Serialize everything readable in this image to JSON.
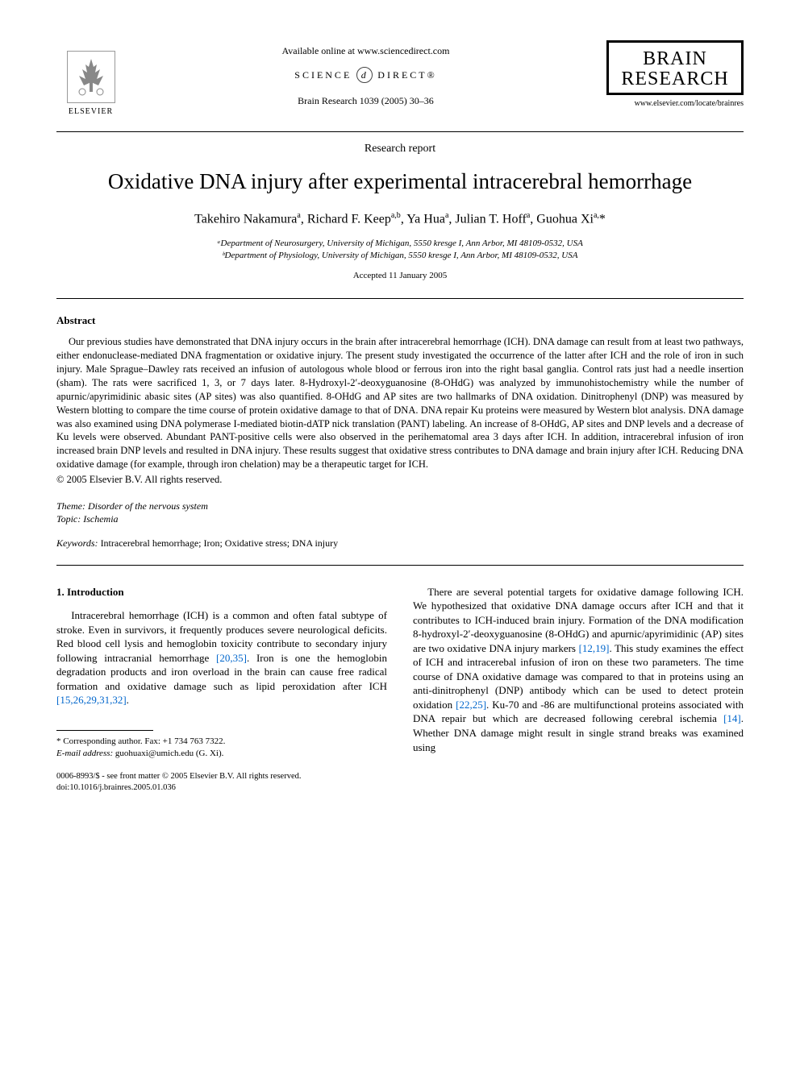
{
  "header": {
    "publisher_name": "ELSEVIER",
    "available_text": "Available online at www.sciencedirect.com",
    "science_direct_left": "SCIENCE",
    "science_direct_right": "DIRECT®",
    "journal_reference": "Brain Research 1039 (2005) 30–36",
    "journal_brand_line1": "BRAIN",
    "journal_brand_line2": "RESEARCH",
    "journal_url": "www.elsevier.com/locate/brainres"
  },
  "article": {
    "type": "Research report",
    "title": "Oxidative DNA injury after experimental intracerebral hemorrhage",
    "authors_html": "Takehiro Nakamura<sup>a</sup>, Richard F. Keep<sup>a,b</sup>, Ya Hua<sup>a</sup>, Julian T. Hoff<sup>a</sup>, Guohua Xi<sup>a,</sup>*",
    "affiliations": [
      "ᵃDepartment of Neurosurgery, University of Michigan, 5550 kresge I, Ann Arbor, MI 48109-0532, USA",
      "ᵇDepartment of Physiology, University of Michigan, 5550 kresge I, Ann Arbor, MI 48109-0532, USA"
    ],
    "accepted": "Accepted 11 January 2005"
  },
  "abstract": {
    "heading": "Abstract",
    "body": "Our previous studies have demonstrated that DNA injury occurs in the brain after intracerebral hemorrhage (ICH). DNA damage can result from at least two pathways, either endonuclease-mediated DNA fragmentation or oxidative injury. The present study investigated the occurrence of the latter after ICH and the role of iron in such injury. Male Sprague–Dawley rats received an infusion of autologous whole blood or ferrous iron into the right basal ganglia. Control rats just had a needle insertion (sham). The rats were sacrificed 1, 3, or 7 days later. 8-Hydroxyl-2′-deoxyguanosine (8-OHdG) was analyzed by immunohistochemistry while the number of apurnic/apyrimidinic abasic sites (AP sites) was also quantified. 8-OHdG and AP sites are two hallmarks of DNA oxidation. Dinitrophenyl (DNP) was measured by Western blotting to compare the time course of protein oxidative damage to that of DNA. DNA repair Ku proteins were measured by Western blot analysis. DNA damage was also examined using DNA polymerase I-mediated biotin-dATP nick translation (PANT) labeling. An increase of 8-OHdG, AP sites and DNP levels and a decrease of Ku levels were observed. Abundant PANT-positive cells were also observed in the perihematomal area 3 days after ICH. In addition, intracerebral infusion of iron increased brain DNP levels and resulted in DNA injury. These results suggest that oxidative stress contributes to DNA damage and brain injury after ICH. Reducing DNA oxidative damage (for example, through iron chelation) may be a therapeutic target for ICH.",
    "copyright": "© 2005 Elsevier B.V. All rights reserved."
  },
  "meta": {
    "theme_label": "Theme:",
    "theme_value": "Disorder of the nervous system",
    "topic_label": "Topic:",
    "topic_value": "Ischemia",
    "keywords_label": "Keywords:",
    "keywords_value": "Intracerebral hemorrhage; Iron; Oxidative stress; DNA injury"
  },
  "intro": {
    "heading": "1. Introduction",
    "col1_p1_pre": "Intracerebral hemorrhage (ICH) is a common and often fatal subtype of stroke. Even in survivors, it frequently produces severe neurological deficits. Red blood cell lysis and hemoglobin toxicity contribute to secondary injury following intracranial hemorrhage ",
    "col1_cite1": "[20,35]",
    "col1_p1_mid": ". Iron is one the hemoglobin degradation products and iron overload in the brain can cause free radical formation and oxidative damage such as lipid peroxidation after ICH ",
    "col1_cite2": "[15,26,29,31,32]",
    "col1_p1_post": ".",
    "col2_p1_pre": "There are several potential targets for oxidative damage following ICH. We hypothesized that oxidative DNA damage occurs after ICH and that it contributes to ICH-induced brain injury. Formation of the DNA modification 8-hydroxyl-2′-deoxyguanosine (8-OHdG) and apurnic/apyrimidinic (AP) sites are two oxidative DNA injury markers ",
    "col2_cite1": "[12,19]",
    "col2_p1_mid1": ". This study examines the effect of ICH and intracerebal infusion of iron on these two parameters. The time course of DNA oxidative damage was compared to that in proteins using an anti-dinitrophenyl (DNP) antibody which can be used to detect protein oxidation ",
    "col2_cite2": "[22,25]",
    "col2_p1_mid2": ". Ku-70 and -86 are multifunctional proteins associated with DNA repair but which are decreased following cerebral ischemia ",
    "col2_cite3": "[14]",
    "col2_p1_post": ". Whether DNA damage might result in single strand breaks was examined using"
  },
  "footnotes": {
    "corresponding": "* Corresponding author. Fax: +1 734 763 7322.",
    "email_label": "E-mail address:",
    "email_value": "guohuaxi@umich.edu (G. Xi)."
  },
  "footer": {
    "line1": "0006-8993/$ - see front matter © 2005 Elsevier B.V. All rights reserved.",
    "line2": "doi:10.1016/j.brainres.2005.01.036"
  },
  "colors": {
    "link": "#0066cc",
    "text": "#000000",
    "background": "#ffffff"
  }
}
